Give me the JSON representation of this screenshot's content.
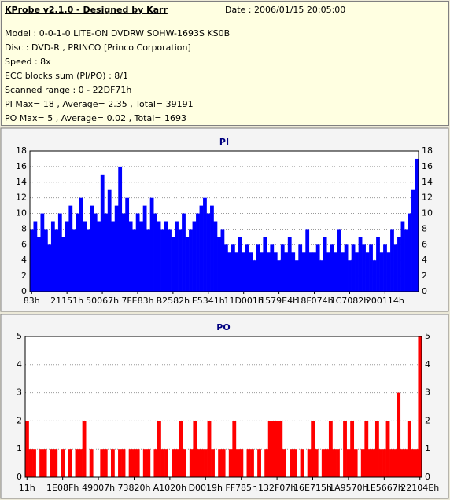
{
  "header": {
    "title": "KProbe v2.1.0 - Designed by Karr",
    "date": "Date : 2006/01/15 20:05:00",
    "lines": [
      "Model : 0-0-1-0 LITE-ON DVDRW SOHW-1693S KS0B",
      "Disc : DVD-R , PRINCO [Princo Corporation]",
      "Speed : 8x",
      "ECC blocks sum (PI/PO) : 8/1",
      "Scanned range : 0 - 22DF71h",
      "PI Max= 18 , Average= 2.35 , Total= 39191",
      "PO Max= 5 , Average= 0.02 , Total= 1693"
    ]
  },
  "chart_data": [
    {
      "type": "bar",
      "title": "PI",
      "color": "#0000ff",
      "grid": true,
      "ylim": [
        0,
        18
      ],
      "yticks": [
        0,
        2,
        4,
        6,
        8,
        10,
        12,
        14,
        16,
        18
      ],
      "categories": [
        "83h",
        null,
        null,
        null,
        null,
        null,
        null,
        null,
        null,
        null,
        "21151h",
        null,
        null,
        null,
        null,
        null,
        null,
        null,
        null,
        null,
        "50067h",
        null,
        null,
        null,
        null,
        null,
        null,
        null,
        null,
        null,
        "7FE83h",
        null,
        null,
        null,
        null,
        null,
        null,
        null,
        null,
        null,
        "B2582h",
        null,
        null,
        null,
        null,
        null,
        null,
        null,
        null,
        null,
        "E5341h",
        null,
        null,
        null,
        null,
        null,
        null,
        null,
        null,
        null,
        "11D001h",
        null,
        null,
        null,
        null,
        null,
        null,
        null,
        null,
        null,
        "1579E4h",
        null,
        null,
        null,
        null,
        null,
        null,
        null,
        null,
        null,
        "18F074h",
        null,
        null,
        null,
        null,
        null,
        null,
        null,
        null,
        null,
        "1C7082h",
        null,
        null,
        null,
        null,
        null,
        null,
        null,
        null,
        null,
        "200114h",
        null,
        null,
        null,
        null,
        null,
        null,
        null,
        null,
        null
      ],
      "values": [
        8,
        9,
        7,
        10,
        8,
        6,
        9,
        8,
        10,
        7,
        9,
        11,
        8,
        10,
        12,
        9,
        8,
        11,
        10,
        9,
        15,
        10,
        13,
        9,
        11,
        16,
        10,
        12,
        9,
        8,
        10,
        9,
        11,
        8,
        12,
        10,
        9,
        8,
        9,
        8,
        7,
        9,
        8,
        10,
        7,
        8,
        9,
        10,
        11,
        12,
        10,
        11,
        9,
        7,
        8,
        6,
        5,
        6,
        5,
        7,
        5,
        6,
        5,
        4,
        6,
        5,
        7,
        5,
        6,
        5,
        4,
        6,
        5,
        7,
        5,
        4,
        6,
        5,
        8,
        5,
        5,
        6,
        4,
        7,
        5,
        6,
        5,
        8,
        5,
        6,
        4,
        6,
        5,
        7,
        6,
        5,
        6,
        4,
        7,
        5,
        6,
        5,
        8,
        6,
        7,
        9,
        8,
        10,
        13,
        17
      ]
    },
    {
      "type": "bar",
      "title": "PO",
      "color": "#ff0000",
      "grid": true,
      "ylim": [
        0,
        5
      ],
      "yticks": [
        0,
        1,
        2,
        3,
        4,
        5
      ],
      "categories": [
        "11h",
        null,
        null,
        null,
        null,
        null,
        null,
        null,
        null,
        null,
        "1E08Fh",
        null,
        null,
        null,
        null,
        null,
        null,
        null,
        null,
        null,
        "49007h",
        null,
        null,
        null,
        null,
        null,
        null,
        null,
        null,
        null,
        "73820h",
        null,
        null,
        null,
        null,
        null,
        null,
        null,
        null,
        null,
        "A1020h",
        null,
        null,
        null,
        null,
        null,
        null,
        null,
        null,
        null,
        "D0019h",
        null,
        null,
        null,
        null,
        null,
        null,
        null,
        null,
        null,
        "FF785h",
        null,
        null,
        null,
        null,
        null,
        null,
        null,
        null,
        null,
        "132F07h",
        null,
        null,
        null,
        null,
        null,
        null,
        null,
        null,
        null,
        "16E715h",
        null,
        null,
        null,
        null,
        null,
        null,
        null,
        null,
        null,
        "1A9570h",
        null,
        null,
        null,
        null,
        null,
        null,
        null,
        null,
        null,
        "1E5667h",
        null,
        null,
        null,
        null,
        null,
        null,
        null,
        null,
        null,
        "22104Eh"
      ],
      "values": [
        2,
        1,
        1,
        0,
        1,
        1,
        0,
        1,
        1,
        0,
        1,
        0,
        1,
        0,
        1,
        1,
        2,
        0,
        1,
        0,
        0,
        1,
        1,
        0,
        1,
        0,
        1,
        1,
        0,
        1,
        1,
        1,
        0,
        1,
        1,
        0,
        1,
        2,
        1,
        1,
        0,
        1,
        1,
        2,
        1,
        0,
        1,
        2,
        1,
        1,
        1,
        2,
        1,
        0,
        1,
        1,
        0,
        1,
        2,
        1,
        1,
        0,
        1,
        1,
        0,
        1,
        0,
        1,
        2,
        2,
        2,
        2,
        1,
        0,
        1,
        1,
        0,
        1,
        0,
        1,
        2,
        1,
        0,
        1,
        1,
        2,
        1,
        1,
        0,
        2,
        1,
        2,
        1,
        0,
        1,
        2,
        1,
        1,
        2,
        1,
        1,
        2,
        1,
        1,
        3,
        1,
        1,
        2,
        1,
        1,
        5
      ]
    }
  ]
}
